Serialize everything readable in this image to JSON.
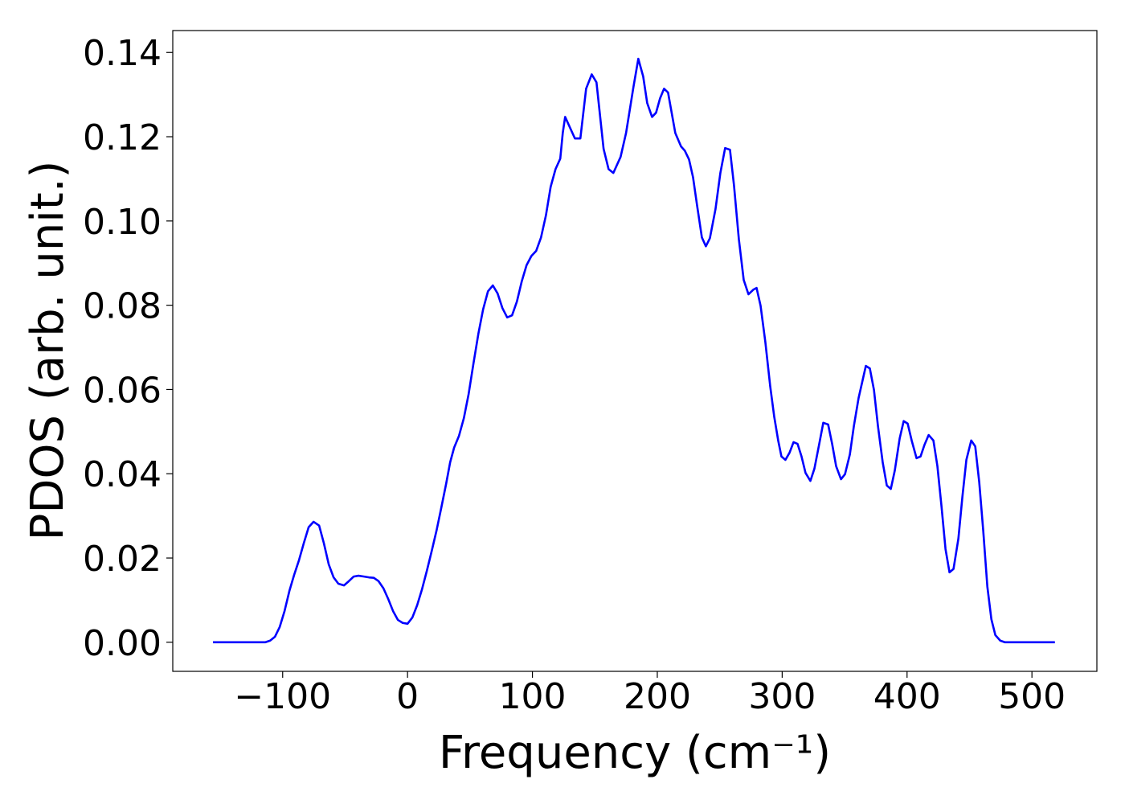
{
  "chart_data": {
    "type": "line",
    "xlabel": "Frequency (cm⁻¹)",
    "ylabel": "PDOS (arb. unit.)",
    "x": [
      -155.8,
      -114,
      -110,
      -106.2,
      -102.4,
      -98.5,
      -94.6,
      -90.8,
      -86.9,
      -83.1,
      -79.2,
      -75.3,
      -70.8,
      -67,
      -63.1,
      -59.2,
      -55.4,
      -50.9,
      -47,
      -43.1,
      -39.3,
      -34.8,
      -30.9,
      -27,
      -23.2,
      -19.3,
      -15.5,
      -11.6,
      -7.7,
      -3.9,
      0,
      3.9,
      7.7,
      11.6,
      15.5,
      19.3,
      23.2,
      27,
      30.9,
      34.1,
      37.3,
      41.2,
      45.1,
      48.9,
      52.8,
      56.7,
      60.5,
      64.4,
      68.3,
      72.1,
      76,
      79.8,
      83.7,
      87.6,
      91.4,
      95.3,
      99.2,
      103,
      106.9,
      110.8,
      114.6,
      118.5,
      122.3,
      124.3,
      126.2,
      134,
      138.4,
      143,
      147.5,
      151.3,
      157,
      161,
      164.8,
      170.6,
      175,
      180.9,
      184.8,
      188.7,
      191.9,
      195.8,
      199,
      202.2,
      205.4,
      208.6,
      214.4,
      219,
      222,
      225.4,
      228.6,
      231.8,
      235.7,
      238.9,
      242.1,
      246.6,
      250.5,
      254.3,
      258.2,
      261.4,
      265.3,
      269.2,
      273,
      276.9,
      279.5,
      282.7,
      286.5,
      290.4,
      293.6,
      296.8,
      299.4,
      302.6,
      305.9,
      309.1,
      312.3,
      315.5,
      318.7,
      322.6,
      325.8,
      329.7,
      332.9,
      336.8,
      340,
      343.2,
      347.1,
      350.3,
      354.2,
      357.4,
      361.2,
      365.1,
      367,
      370.2,
      373.5,
      376.7,
      380.5,
      383.8,
      387,
      390.2,
      394.1,
      397.3,
      400.5,
      403.7,
      407.6,
      410.8,
      414,
      417.3,
      421.1,
      424.3,
      427.6,
      430.8,
      434,
      437.2,
      441.1,
      444.3,
      447.5,
      451.4,
      454.6,
      457.8,
      461,
      464.3,
      467.5,
      470.7,
      474.6,
      478.4,
      518.4
    ],
    "series": [
      {
        "color": "#0000ff",
        "values": [
          0,
          0,
          0.0004,
          0.0013,
          0.0036,
          0.0074,
          0.0122,
          0.016,
          0.0195,
          0.0235,
          0.0273,
          0.0286,
          0.0277,
          0.0235,
          0.0185,
          0.0154,
          0.0139,
          0.0135,
          0.0145,
          0.0156,
          0.0158,
          0.0156,
          0.0154,
          0.0153,
          0.0145,
          0.0128,
          0.0103,
          0.0074,
          0.0053,
          0.0046,
          0.0044,
          0.0059,
          0.0088,
          0.0126,
          0.017,
          0.0216,
          0.0265,
          0.0319,
          0.0376,
          0.0427,
          0.0462,
          0.049,
          0.0532,
          0.0589,
          0.0662,
          0.0732,
          0.079,
          0.0833,
          0.0847,
          0.0828,
          0.0793,
          0.0771,
          0.0776,
          0.0809,
          0.0856,
          0.0895,
          0.0917,
          0.0929,
          0.0961,
          0.1013,
          0.1081,
          0.1123,
          0.1148,
          0.1209,
          0.1247,
          0.1196,
          0.1196,
          0.1314,
          0.1348,
          0.1329,
          0.1171,
          0.1123,
          0.1114,
          0.1152,
          0.1209,
          0.1318,
          0.1385,
          0.1343,
          0.128,
          0.1247,
          0.1257,
          0.1291,
          0.1314,
          0.1305,
          0.1209,
          0.1177,
          0.1167,
          0.1146,
          0.1104,
          0.1038,
          0.0961,
          0.094,
          0.0959,
          0.1028,
          0.1114,
          0.1173,
          0.1169,
          0.1085,
          0.0957,
          0.086,
          0.0826,
          0.0837,
          0.0841,
          0.0799,
          0.0713,
          0.0608,
          0.0536,
          0.0479,
          0.0441,
          0.0433,
          0.045,
          0.0475,
          0.0471,
          0.0441,
          0.0402,
          0.0383,
          0.0412,
          0.0471,
          0.0521,
          0.0517,
          0.0471,
          0.0418,
          0.0387,
          0.0399,
          0.0446,
          0.0513,
          0.058,
          0.0631,
          0.0656,
          0.065,
          0.0599,
          0.0513,
          0.0427,
          0.0372,
          0.0364,
          0.0408,
          0.0484,
          0.0525,
          0.0519,
          0.0479,
          0.0437,
          0.0441,
          0.0469,
          0.0492,
          0.0479,
          0.0418,
          0.0322,
          0.0221,
          0.0166,
          0.0174,
          0.0246,
          0.0345,
          0.0433,
          0.0479,
          0.0465,
          0.038,
          0.0265,
          0.0132,
          0.0055,
          0.0017,
          0.0004,
          0,
          0
        ]
      }
    ],
    "xlim": [
      -188,
      552
    ],
    "ylim": [
      -0.0069,
      0.1452
    ],
    "xticks": [
      {
        "value": -100,
        "label": "−100"
      },
      0,
      100,
      200,
      300,
      400,
      500
    ],
    "yticks": [
      {
        "value": 0,
        "label": "0.00"
      },
      {
        "value": 0.02,
        "label": "0.02"
      },
      {
        "value": 0.04,
        "label": "0.04"
      },
      {
        "value": 0.06,
        "label": "0.06"
      },
      {
        "value": 0.08,
        "label": "0.08"
      },
      {
        "value": 0.1,
        "label": "0.10"
      },
      {
        "value": 0.12,
        "label": "0.12"
      },
      {
        "value": 0.14,
        "label": "0.14"
      }
    ],
    "grid": false
  }
}
